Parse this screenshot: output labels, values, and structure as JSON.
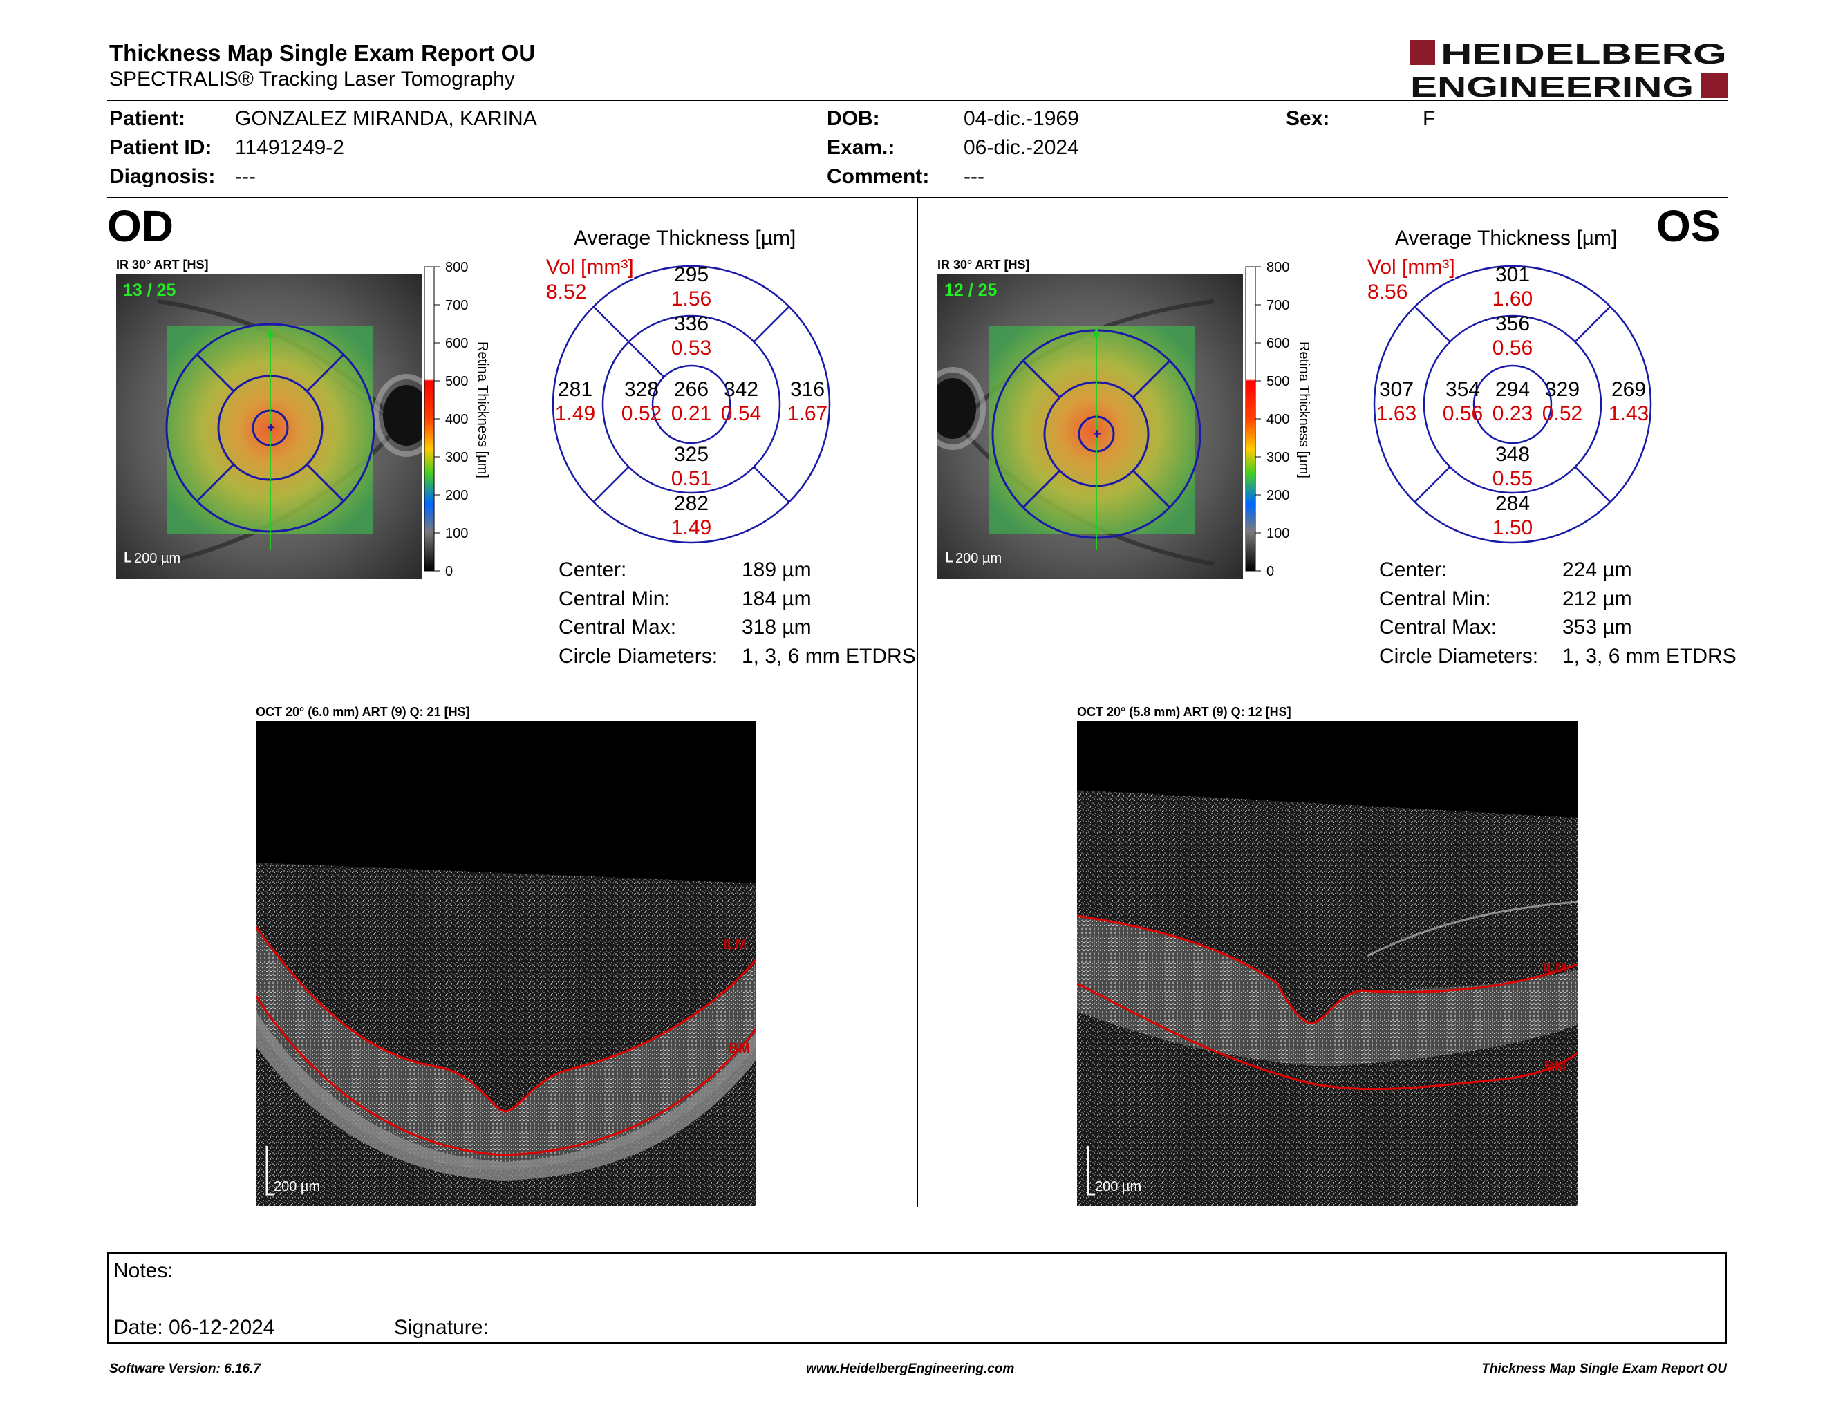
{
  "header": {
    "title": "Thickness Map Single Exam Report OU",
    "subtitle": "SPECTRALIS® Tracking Laser Tomography",
    "logo_line1": "HEIDELBERG",
    "logo_line2": "ENGINEERING"
  },
  "patient": {
    "patient_label": "Patient:",
    "patient_value": "GONZALEZ MIRANDA, KARINA",
    "id_label": "Patient ID:",
    "id_value": "11491249-2",
    "diagnosis_label": "Diagnosis:",
    "diagnosis_value": "---",
    "dob_label": "DOB:",
    "dob_value": "04-dic.-1969",
    "exam_label": "Exam.:",
    "exam_value": "06-dic.-2024",
    "comment_label": "Comment:",
    "comment_value": "---",
    "sex_label": "Sex:",
    "sex_value": "F"
  },
  "colorbar": {
    "ticks": [
      "800",
      "700",
      "600",
      "500",
      "400",
      "300",
      "200",
      "100",
      "0"
    ],
    "label": "Retina Thickness [µm]"
  },
  "od": {
    "eye": "OD",
    "ir_title": "IR 30° ART [HS]",
    "frame": "13 / 25",
    "ir_scale": "200 µm",
    "avg_title": "Average Thickness [µm]",
    "vol_label": "Vol [mm³]",
    "vol_value": "8.52",
    "grid": {
      "center_t": "266",
      "center_v": "0.21",
      "inner_sup_t": "336",
      "inner_sup_v": "0.53",
      "inner_inf_t": "325",
      "inner_inf_v": "0.51",
      "inner_left_t": "328",
      "inner_left_v": "0.52",
      "inner_right_t": "342",
      "inner_right_v": "0.54",
      "outer_sup_t": "295",
      "outer_sup_v": "1.56",
      "outer_inf_t": "282",
      "outer_inf_v": "1.49",
      "outer_left_t": "281",
      "outer_left_v": "1.49",
      "outer_right_t": "316",
      "outer_right_v": "1.67"
    },
    "stats": {
      "center_label": "Center:",
      "center_value": "189 µm",
      "cmin_label": "Central Min:",
      "cmin_value": "184 µm",
      "cmax_label": "Central Max:",
      "cmax_value": "318 µm",
      "circ_label": "Circle Diameters:",
      "circ_value": "1, 3, 6 mm ETDRS"
    },
    "oct_title": "OCT 20° (6.0 mm) ART (9) Q: 21 [HS]",
    "oct_scale": "200 µm",
    "ilm": "ILM",
    "bm": "BM"
  },
  "os": {
    "eye": "OS",
    "ir_title": "IR 30° ART [HS]",
    "frame": "12 / 25",
    "ir_scale": "200 µm",
    "avg_title": "Average Thickness [µm]",
    "vol_label": "Vol [mm³]",
    "vol_value": "8.56",
    "grid": {
      "center_t": "294",
      "center_v": "0.23",
      "inner_sup_t": "356",
      "inner_sup_v": "0.56",
      "inner_inf_t": "348",
      "inner_inf_v": "0.55",
      "inner_left_t": "354",
      "inner_left_v": "0.56",
      "inner_right_t": "329",
      "inner_right_v": "0.52",
      "outer_sup_t": "301",
      "outer_sup_v": "1.60",
      "outer_inf_t": "284",
      "outer_inf_v": "1.50",
      "outer_left_t": "307",
      "outer_left_v": "1.63",
      "outer_right_t": "269",
      "outer_right_v": "1.43"
    },
    "stats": {
      "center_label": "Center:",
      "center_value": "224 µm",
      "cmin_label": "Central Min:",
      "cmin_value": "212 µm",
      "cmax_label": "Central Max:",
      "cmax_value": "353 µm",
      "circ_label": "Circle Diameters:",
      "circ_value": "1, 3, 6 mm ETDRS"
    },
    "oct_title": "OCT 20° (5.8 mm) ART (9) Q: 12 [HS]",
    "oct_scale": "200 µm",
    "ilm": "ILM",
    "bm": "BM"
  },
  "notes": {
    "notes_label": "Notes:",
    "date_label": "Date: 06-12-2024",
    "signature_label": "Signature:"
  },
  "footer": {
    "software": "Software Version: 6.16.7",
    "website": "www.HeidelbergEngineering.com",
    "report": "Thickness Map Single Exam Report OU"
  },
  "colors": {
    "brand": "#8b1a2b",
    "ring": "#1a1aa8",
    "red_value": "#d40000",
    "frame_green": "#22ee22"
  }
}
